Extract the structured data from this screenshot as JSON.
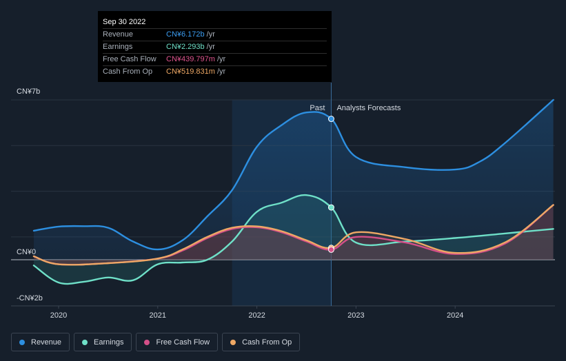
{
  "colors": {
    "revenue": "#2d8fe0",
    "earnings": "#6fe0c8",
    "fcf": "#d44f88",
    "cfo": "#eea865",
    "background": "#161f2b"
  },
  "tooltip": {
    "date": "Sep 30 2022",
    "rows": [
      {
        "label": "Revenue",
        "value": "CN¥6.172b",
        "unit": "/yr",
        "color": "#3b9cf0"
      },
      {
        "label": "Earnings",
        "value": "CN¥2.293b",
        "unit": "/yr",
        "color": "#6fe0c8"
      },
      {
        "label": "Free Cash Flow",
        "value": "CN¥439.797m",
        "unit": "/yr",
        "color": "#e0558f"
      },
      {
        "label": "Cash From Op",
        "value": "CN¥519.831m",
        "unit": "/yr",
        "color": "#eea865"
      }
    ]
  },
  "legend": [
    {
      "label": "Revenue",
      "color": "#2d8fe0"
    },
    {
      "label": "Earnings",
      "color": "#6fe0c8"
    },
    {
      "label": "Free Cash Flow",
      "color": "#d44f88"
    },
    {
      "label": "Cash From Op",
      "color": "#eea865"
    }
  ],
  "chart_data": {
    "type": "line",
    "y_unit": "CN¥ billions",
    "ylim": [
      -2,
      7
    ],
    "y_tick_labels": [
      "CN¥7b",
      "CN¥0",
      "-CN¥2b"
    ],
    "x_tick_labels": [
      "2020",
      "2021",
      "2022",
      "2023",
      "2024"
    ],
    "xlim": [
      2019.75,
      2024.99
    ],
    "past_label": "Past",
    "forecast_label": "Analysts Forecasts",
    "past_forecast_boundary": 2022.75,
    "highlight_start": 2021.75,
    "series": [
      {
        "name": "Revenue",
        "key": "revenue",
        "x": [
          2019.75,
          2020.0,
          2020.25,
          2020.5,
          2020.75,
          2021.0,
          2021.25,
          2021.5,
          2021.75,
          2022.0,
          2022.25,
          2022.5,
          2022.75,
          2023.0,
          2023.5,
          2024.0,
          2024.25,
          2024.5,
          2024.99
        ],
        "values": [
          1.27,
          1.45,
          1.47,
          1.4,
          0.8,
          0.45,
          0.85,
          1.9,
          3.05,
          4.95,
          5.9,
          6.45,
          6.17,
          4.5,
          4.05,
          3.95,
          4.3,
          5.1,
          7.0
        ]
      },
      {
        "name": "Earnings",
        "key": "earnings",
        "x": [
          2019.75,
          2020.0,
          2020.25,
          2020.5,
          2020.75,
          2021.0,
          2021.25,
          2021.5,
          2021.75,
          2022.0,
          2022.25,
          2022.5,
          2022.75,
          2023.0,
          2023.5,
          2024.0,
          2024.5,
          2024.99
        ],
        "values": [
          -0.25,
          -1.0,
          -0.97,
          -0.78,
          -0.9,
          -0.2,
          -0.12,
          0.0,
          0.8,
          2.1,
          2.5,
          2.83,
          2.29,
          0.75,
          0.8,
          0.95,
          1.15,
          1.35
        ]
      },
      {
        "name": "Free Cash Flow",
        "key": "fcf",
        "x": [
          2019.75,
          2020.0,
          2020.5,
          2021.0,
          2021.25,
          2021.5,
          2021.75,
          2022.0,
          2022.25,
          2022.5,
          2022.75,
          2023.0,
          2023.5,
          2024.0,
          2024.5,
          2024.99
        ],
        "values": [
          0.15,
          -0.2,
          -0.15,
          0.05,
          0.4,
          0.95,
          1.35,
          1.42,
          1.2,
          0.8,
          0.44,
          1.0,
          0.75,
          0.25,
          0.7,
          2.4
        ]
      },
      {
        "name": "Cash From Op",
        "key": "cfo",
        "x": [
          2019.75,
          2020.0,
          2020.5,
          2021.0,
          2021.25,
          2021.5,
          2021.75,
          2022.0,
          2022.25,
          2022.5,
          2022.75,
          2023.0,
          2023.5,
          2024.0,
          2024.5,
          2024.99
        ],
        "values": [
          0.15,
          -0.2,
          -0.15,
          0.05,
          0.45,
          1.0,
          1.4,
          1.46,
          1.25,
          0.85,
          0.52,
          1.2,
          0.9,
          0.3,
          0.75,
          2.4
        ]
      }
    ]
  }
}
